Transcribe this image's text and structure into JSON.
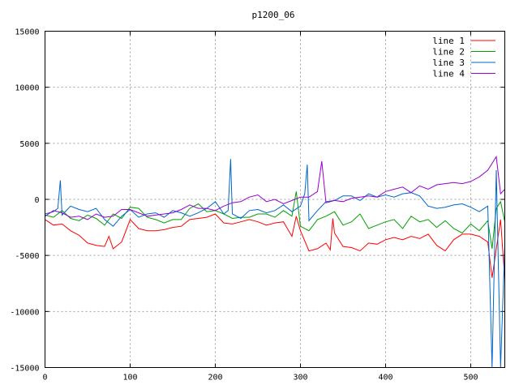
{
  "chart_data": {
    "type": "line",
    "title": "p1200_06",
    "xlabel": "",
    "ylabel": "",
    "xlim": [
      0,
      540
    ],
    "ylim": [
      -15000,
      15000
    ],
    "xticks": [
      0,
      100,
      200,
      300,
      400,
      500
    ],
    "yticks": [
      -15000,
      -10000,
      -5000,
      0,
      5000,
      10000,
      15000
    ],
    "grid": true,
    "legend": "top-right",
    "series": [
      {
        "name": "line 1",
        "color": "#ff0000",
        "points": [
          [
            0,
            -1800
          ],
          [
            10,
            -2300
          ],
          [
            20,
            -2200
          ],
          [
            30,
            -2800
          ],
          [
            40,
            -3200
          ],
          [
            50,
            -3900
          ],
          [
            60,
            -4100
          ],
          [
            70,
            -4200
          ],
          [
            75,
            -3300
          ],
          [
            80,
            -4400
          ],
          [
            90,
            -3800
          ],
          [
            100,
            -1800
          ],
          [
            110,
            -2600
          ],
          [
            120,
            -2800
          ],
          [
            130,
            -2800
          ],
          [
            140,
            -2700
          ],
          [
            150,
            -2500
          ],
          [
            160,
            -2400
          ],
          [
            170,
            -1800
          ],
          [
            180,
            -1700
          ],
          [
            190,
            -1600
          ],
          [
            200,
            -1300
          ],
          [
            210,
            -2100
          ],
          [
            220,
            -2200
          ],
          [
            230,
            -2000
          ],
          [
            240,
            -1800
          ],
          [
            250,
            -2000
          ],
          [
            260,
            -2300
          ],
          [
            270,
            -2100
          ],
          [
            280,
            -2000
          ],
          [
            290,
            -3300
          ],
          [
            295,
            -1500
          ],
          [
            300,
            -2800
          ],
          [
            310,
            -4600
          ],
          [
            320,
            -4400
          ],
          [
            330,
            -3900
          ],
          [
            335,
            -4500
          ],
          [
            338,
            -1700
          ],
          [
            340,
            -3000
          ],
          [
            350,
            -4200
          ],
          [
            360,
            -4300
          ],
          [
            370,
            -4600
          ],
          [
            380,
            -3900
          ],
          [
            390,
            -4000
          ],
          [
            400,
            -3600
          ],
          [
            410,
            -3400
          ],
          [
            420,
            -3600
          ],
          [
            430,
            -3300
          ],
          [
            440,
            -3500
          ],
          [
            450,
            -3100
          ],
          [
            460,
            -4100
          ],
          [
            470,
            -4600
          ],
          [
            480,
            -3600
          ],
          [
            490,
            -3100
          ],
          [
            500,
            -3100
          ],
          [
            510,
            -3300
          ],
          [
            520,
            -3800
          ],
          [
            525,
            -7000
          ],
          [
            530,
            -4400
          ],
          [
            535,
            -1800
          ],
          [
            540,
            -7200
          ]
        ]
      },
      {
        "name": "line 2",
        "color": "#00a000",
        "points": [
          [
            0,
            -1400
          ],
          [
            10,
            -1600
          ],
          [
            20,
            -1000
          ],
          [
            30,
            -1700
          ],
          [
            40,
            -1900
          ],
          [
            50,
            -1400
          ],
          [
            60,
            -1700
          ],
          [
            70,
            -2300
          ],
          [
            80,
            -1300
          ],
          [
            90,
            -1700
          ],
          [
            100,
            -700
          ],
          [
            110,
            -800
          ],
          [
            120,
            -1600
          ],
          [
            130,
            -1800
          ],
          [
            140,
            -2100
          ],
          [
            150,
            -1800
          ],
          [
            160,
            -1800
          ],
          [
            170,
            -800
          ],
          [
            180,
            -400
          ],
          [
            190,
            -1100
          ],
          [
            200,
            -1000
          ],
          [
            210,
            -1300
          ],
          [
            220,
            -1700
          ],
          [
            230,
            -1600
          ],
          [
            240,
            -1600
          ],
          [
            250,
            -1300
          ],
          [
            260,
            -1300
          ],
          [
            270,
            -1600
          ],
          [
            280,
            -1000
          ],
          [
            290,
            -1500
          ],
          [
            295,
            700
          ],
          [
            300,
            -2400
          ],
          [
            310,
            -2800
          ],
          [
            320,
            -1800
          ],
          [
            330,
            -1500
          ],
          [
            340,
            -1100
          ],
          [
            350,
            -2300
          ],
          [
            360,
            -2000
          ],
          [
            370,
            -1300
          ],
          [
            380,
            -2600
          ],
          [
            390,
            -2300
          ],
          [
            400,
            -2000
          ],
          [
            410,
            -1800
          ],
          [
            420,
            -2600
          ],
          [
            430,
            -1500
          ],
          [
            440,
            -2000
          ],
          [
            450,
            -1800
          ],
          [
            460,
            -2500
          ],
          [
            470,
            -1900
          ],
          [
            480,
            -2600
          ],
          [
            490,
            -3000
          ],
          [
            500,
            -2200
          ],
          [
            510,
            -2800
          ],
          [
            520,
            -1900
          ],
          [
            525,
            -4400
          ],
          [
            530,
            -800
          ],
          [
            535,
            -200
          ],
          [
            540,
            -2000
          ]
        ]
      },
      {
        "name": "line 3",
        "color": "#0066cc",
        "points": [
          [
            0,
            -1300
          ],
          [
            10,
            -1100
          ],
          [
            15,
            -800
          ],
          [
            18,
            1700
          ],
          [
            20,
            -1400
          ],
          [
            30,
            -600
          ],
          [
            40,
            -900
          ],
          [
            50,
            -1100
          ],
          [
            60,
            -800
          ],
          [
            70,
            -1800
          ],
          [
            80,
            -2400
          ],
          [
            90,
            -1500
          ],
          [
            100,
            -900
          ],
          [
            110,
            -1600
          ],
          [
            120,
            -1300
          ],
          [
            130,
            -1200
          ],
          [
            140,
            -1600
          ],
          [
            150,
            -1000
          ],
          [
            160,
            -1200
          ],
          [
            170,
            -1500
          ],
          [
            180,
            -1200
          ],
          [
            190,
            -800
          ],
          [
            200,
            -200
          ],
          [
            210,
            -1300
          ],
          [
            215,
            -1000
          ],
          [
            218,
            3600
          ],
          [
            220,
            -1300
          ],
          [
            230,
            -1700
          ],
          [
            240,
            -1000
          ],
          [
            250,
            -900
          ],
          [
            260,
            -1200
          ],
          [
            270,
            -1000
          ],
          [
            280,
            -500
          ],
          [
            290,
            -1100
          ],
          [
            300,
            -600
          ],
          [
            305,
            500
          ],
          [
            308,
            3100
          ],
          [
            310,
            -1900
          ],
          [
            320,
            -1000
          ],
          [
            330,
            -200
          ],
          [
            340,
            -100
          ],
          [
            350,
            300
          ],
          [
            360,
            300
          ],
          [
            370,
            -100
          ],
          [
            380,
            500
          ],
          [
            390,
            200
          ],
          [
            400,
            400
          ],
          [
            410,
            200
          ],
          [
            420,
            500
          ],
          [
            430,
            600
          ],
          [
            440,
            300
          ],
          [
            450,
            -600
          ],
          [
            460,
            -800
          ],
          [
            470,
            -700
          ],
          [
            480,
            -500
          ],
          [
            490,
            -400
          ],
          [
            500,
            -700
          ],
          [
            510,
            -1100
          ],
          [
            520,
            -600
          ],
          [
            525,
            -15000
          ],
          [
            530,
            2600
          ],
          [
            535,
            -15000
          ],
          [
            540,
            -4000
          ]
        ]
      },
      {
        "name": "line 4",
        "color": "#9900cc",
        "points": [
          [
            0,
            -1500
          ],
          [
            10,
            -1000
          ],
          [
            20,
            -1200
          ],
          [
            30,
            -1600
          ],
          [
            40,
            -1500
          ],
          [
            50,
            -1800
          ],
          [
            60,
            -1300
          ],
          [
            70,
            -1600
          ],
          [
            80,
            -1500
          ],
          [
            90,
            -900
          ],
          [
            100,
            -900
          ],
          [
            110,
            -1200
          ],
          [
            120,
            -1500
          ],
          [
            130,
            -1400
          ],
          [
            140,
            -1300
          ],
          [
            150,
            -1200
          ],
          [
            160,
            -900
          ],
          [
            170,
            -500
          ],
          [
            180,
            -800
          ],
          [
            190,
            -800
          ],
          [
            200,
            -1000
          ],
          [
            210,
            -600
          ],
          [
            220,
            -300
          ],
          [
            230,
            -200
          ],
          [
            240,
            200
          ],
          [
            250,
            400
          ],
          [
            260,
            -200
          ],
          [
            270,
            0
          ],
          [
            280,
            -400
          ],
          [
            290,
            -100
          ],
          [
            300,
            200
          ],
          [
            310,
            200
          ],
          [
            320,
            700
          ],
          [
            325,
            3400
          ],
          [
            330,
            -300
          ],
          [
            340,
            -100
          ],
          [
            350,
            -200
          ],
          [
            360,
            100
          ],
          [
            370,
            200
          ],
          [
            380,
            300
          ],
          [
            390,
            200
          ],
          [
            400,
            700
          ],
          [
            410,
            900
          ],
          [
            420,
            1100
          ],
          [
            430,
            600
          ],
          [
            440,
            1200
          ],
          [
            450,
            900
          ],
          [
            460,
            1300
          ],
          [
            470,
            1400
          ],
          [
            480,
            1500
          ],
          [
            490,
            1400
          ],
          [
            500,
            1600
          ],
          [
            510,
            2000
          ],
          [
            520,
            2600
          ],
          [
            530,
            3800
          ],
          [
            535,
            500
          ],
          [
            540,
            900
          ]
        ]
      }
    ]
  }
}
